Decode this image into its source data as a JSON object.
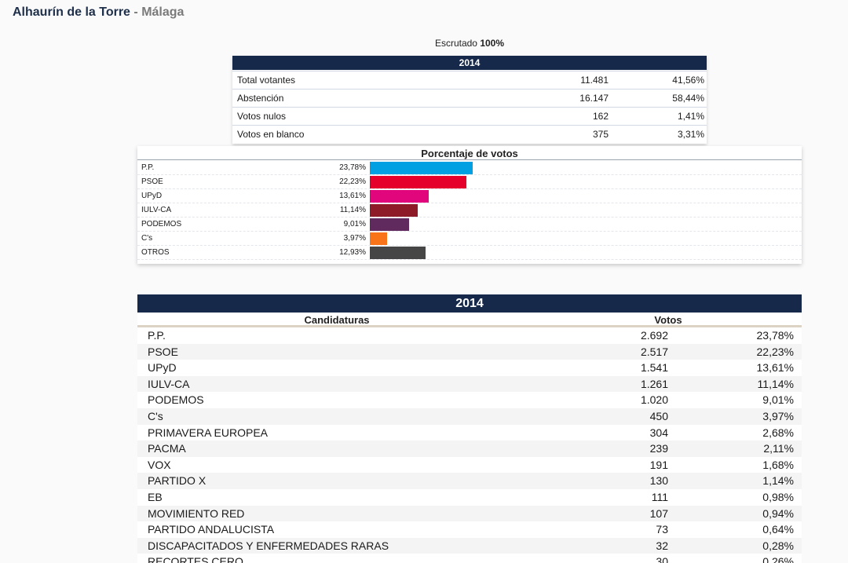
{
  "header": {
    "municipality": "Alhaurín de la Torre",
    "separator": "-",
    "province": "Málaga"
  },
  "escrutado": {
    "label": "Escrutado",
    "value": "100%"
  },
  "summary": {
    "year": "2014",
    "rows": [
      {
        "label": "Total votantes",
        "num": "11.481",
        "pct": "41,56%"
      },
      {
        "label": "Abstención",
        "num": "16.147",
        "pct": "58,44%"
      },
      {
        "label": "Votos nulos",
        "num": "162",
        "pct": "1,41%"
      },
      {
        "label": "Votos en blanco",
        "num": "375",
        "pct": "3,31%"
      }
    ]
  },
  "chart_data": {
    "type": "bar",
    "title": "Porcentaje de votos",
    "categories": [
      "P.P.",
      "PSOE",
      "UPyD",
      "IULV-CA",
      "PODEMOS",
      "C's",
      "OTROS"
    ],
    "values": [
      23.78,
      22.23,
      13.61,
      11.14,
      9.01,
      3.97,
      12.93
    ],
    "labels": [
      "23,78%",
      "22,23%",
      "13,61%",
      "11,14%",
      "9,01%",
      "3,97%",
      "12,93%"
    ],
    "colors": [
      "#00a0e3",
      "#e4002b",
      "#e2067d",
      "#8e1c28",
      "#612a5f",
      "#f97319",
      "#464646"
    ],
    "orientation": "horizontal"
  },
  "results": {
    "year": "2014",
    "col_candidaturas": "Candidaturas",
    "col_votos": "Votos",
    "rows": [
      {
        "name": "P.P.",
        "votes": "2.692",
        "pct": "23,78%"
      },
      {
        "name": "PSOE",
        "votes": "2.517",
        "pct": "22,23%"
      },
      {
        "name": "UPyD",
        "votes": "1.541",
        "pct": "13,61%"
      },
      {
        "name": "IULV-CA",
        "votes": "1.261",
        "pct": "11,14%"
      },
      {
        "name": "PODEMOS",
        "votes": "1.020",
        "pct": "9,01%"
      },
      {
        "name": "C's",
        "votes": "450",
        "pct": "3,97%"
      },
      {
        "name": "PRIMAVERA EUROPEA",
        "votes": "304",
        "pct": "2,68%"
      },
      {
        "name": "PACMA",
        "votes": "239",
        "pct": "2,11%"
      },
      {
        "name": "VOX",
        "votes": "191",
        "pct": "1,68%"
      },
      {
        "name": "PARTIDO X",
        "votes": "130",
        "pct": "1,14%"
      },
      {
        "name": "EB",
        "votes": "111",
        "pct": "0,98%"
      },
      {
        "name": "MOVIMIENTO RED",
        "votes": "107",
        "pct": "0,94%"
      },
      {
        "name": "PARTIDO ANDALUCISTA",
        "votes": "73",
        "pct": "0,64%"
      },
      {
        "name": "DISCAPACITADOS Y ENFERMEDADES RARAS",
        "votes": "32",
        "pct": "0,28%"
      },
      {
        "name": "RECORTES CERO",
        "votes": "30",
        "pct": "0,26%"
      }
    ]
  }
}
